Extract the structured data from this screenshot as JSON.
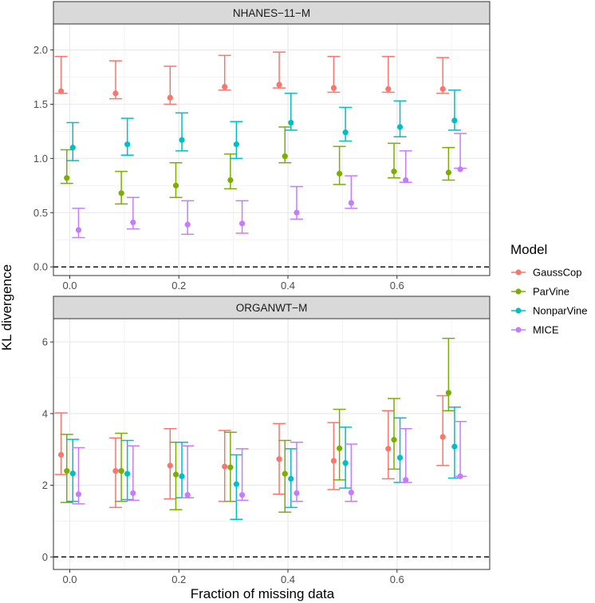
{
  "chart_data": {
    "type": "errorbar",
    "xlabel": "Fraction of missing data",
    "ylabel": "KL divergence",
    "legend": {
      "title": "Model",
      "position": "right",
      "items": [
        {
          "name": "GaussCop",
          "color": "#F8766D"
        },
        {
          "name": "ParVine",
          "color": "#7CAE00"
        },
        {
          "name": "NonparVine",
          "color": "#00BFC4"
        },
        {
          "name": "MICE",
          "color": "#C77CFF"
        }
      ]
    },
    "x_ticks": [
      "0.0",
      "0.2",
      "0.4",
      "0.6"
    ],
    "x_tick_values": [
      0.0,
      0.2,
      0.4,
      0.6
    ],
    "xlim": [
      -0.03,
      0.77
    ],
    "grid": true,
    "reference_line": {
      "y": 0,
      "style": "dashed"
    },
    "panels": [
      {
        "title": "NHANES−11−M",
        "ylim": [
          -0.08,
          2.24
        ],
        "y_ticks": [
          "0.0",
          "0.5",
          "1.0",
          "1.5",
          "2.0"
        ],
        "y_tick_values": [
          0,
          0.5,
          1.0,
          1.5,
          2.0
        ],
        "x_positions": [
          0.0,
          0.1,
          0.2,
          0.3,
          0.4,
          0.5,
          0.6,
          0.7
        ],
        "series": [
          {
            "name": "GaussCop",
            "mean": [
              1.62,
              1.6,
              1.56,
              1.66,
              1.68,
              1.65,
              1.64,
              1.64
            ],
            "lower": [
              1.6,
              1.55,
              1.5,
              1.63,
              1.65,
              1.61,
              1.61,
              1.6
            ],
            "upper": [
              1.94,
              1.9,
              1.85,
              1.95,
              1.98,
              1.94,
              1.94,
              1.93
            ]
          },
          {
            "name": "ParVine",
            "mean": [
              0.82,
              0.68,
              0.75,
              0.8,
              1.02,
              0.86,
              0.88,
              0.87
            ],
            "lower": [
              0.77,
              0.58,
              0.64,
              0.72,
              0.96,
              0.76,
              0.82,
              0.8
            ],
            "upper": [
              1.08,
              0.88,
              0.96,
              1.04,
              1.29,
              1.11,
              1.14,
              1.1
            ]
          },
          {
            "name": "NonparVine",
            "mean": [
              1.1,
              1.13,
              1.17,
              1.13,
              1.33,
              1.24,
              1.29,
              1.35
            ],
            "lower": [
              0.98,
              1.03,
              1.07,
              1.0,
              1.26,
              1.16,
              1.2,
              1.26
            ],
            "upper": [
              1.33,
              1.37,
              1.42,
              1.34,
              1.6,
              1.47,
              1.53,
              1.63
            ]
          },
          {
            "name": "MICE",
            "mean": [
              0.34,
              0.41,
              0.39,
              0.4,
              0.5,
              0.59,
              0.8,
              0.9
            ],
            "lower": [
              0.27,
              0.35,
              0.3,
              0.31,
              0.44,
              0.54,
              0.78,
              0.91
            ],
            "upper": [
              0.54,
              0.64,
              0.61,
              0.61,
              0.74,
              0.84,
              1.07,
              1.23
            ]
          }
        ]
      },
      {
        "title": "ORGANWT−M",
        "ylim": [
          -0.35,
          6.65
        ],
        "y_ticks": [
          "0",
          "2",
          "4",
          "6"
        ],
        "y_tick_values": [
          0,
          2,
          4,
          6
        ],
        "x_positions": [
          0.0,
          0.1,
          0.2,
          0.3,
          0.4,
          0.5,
          0.6,
          0.7
        ],
        "series": [
          {
            "name": "GaussCop",
            "mean": [
              2.85,
              2.4,
              2.55,
              2.52,
              2.73,
              2.68,
              3.02,
              3.35
            ],
            "lower": [
              2.3,
              1.38,
              1.62,
              1.55,
              1.75,
              1.88,
              2.18,
              2.55
            ],
            "upper": [
              4.02,
              3.32,
              3.58,
              3.53,
              3.72,
              3.75,
              4.08,
              4.5
            ]
          },
          {
            "name": "ParVine",
            "mean": [
              2.4,
              2.4,
              2.3,
              2.5,
              2.32,
              3.03,
              3.27,
              4.58
            ],
            "lower": [
              1.52,
              1.55,
              1.32,
              1.55,
              1.25,
              2.15,
              2.45,
              4.08
            ],
            "upper": [
              3.42,
              3.45,
              3.2,
              3.48,
              3.25,
              4.12,
              4.42,
              6.1
            ]
          },
          {
            "name": "NonparVine",
            "mean": [
              2.33,
              2.32,
              2.25,
              2.03,
              2.18,
              2.62,
              2.77,
              3.08
            ],
            "lower": [
              1.55,
              1.6,
              1.65,
              1.05,
              1.38,
              1.92,
              2.08,
              2.2
            ],
            "upper": [
              3.28,
              3.25,
              3.2,
              2.85,
              3.02,
              3.62,
              3.88,
              4.18
            ]
          },
          {
            "name": "MICE",
            "mean": [
              1.75,
              1.78,
              1.73,
              1.73,
              1.78,
              1.8,
              2.15,
              2.25
            ],
            "lower": [
              1.48,
              1.58,
              1.65,
              1.58,
              1.55,
              1.55,
              2.08,
              2.25
            ],
            "upper": [
              3.05,
              3.1,
              3.1,
              3.02,
              3.2,
              3.15,
              3.58,
              3.78
            ]
          }
        ]
      }
    ]
  }
}
